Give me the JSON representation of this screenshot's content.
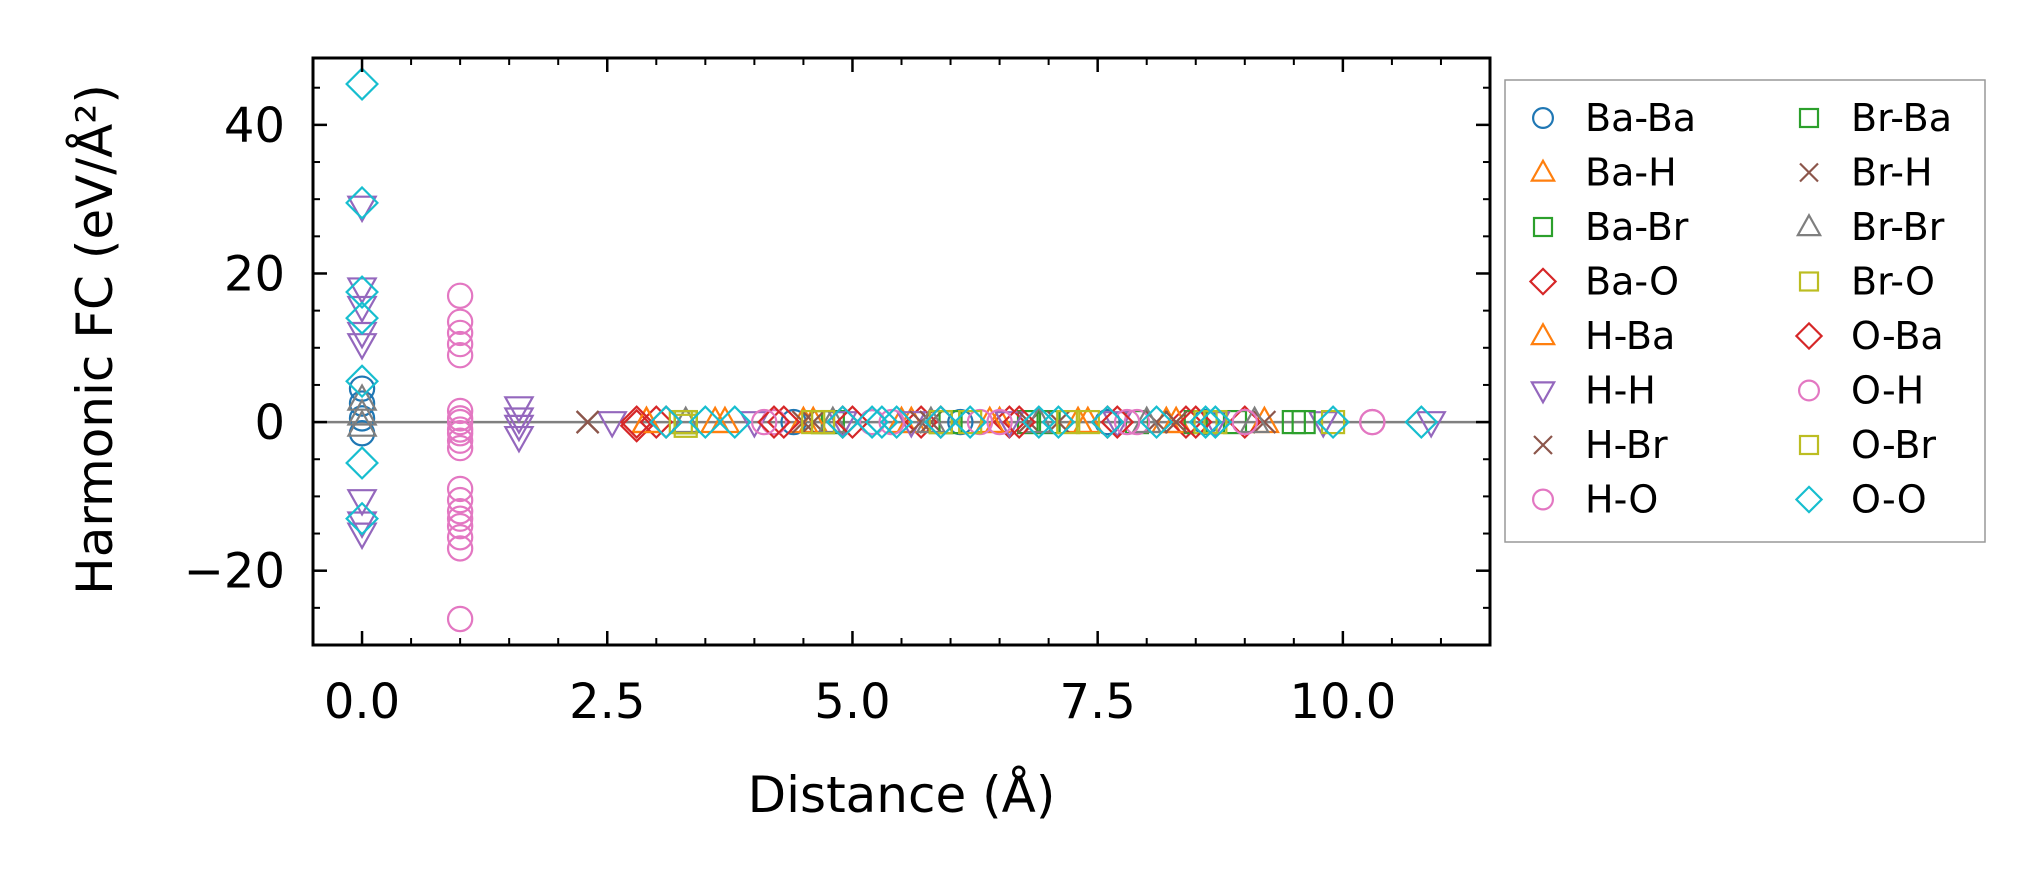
{
  "chart_data": {
    "type": "scatter",
    "title": "",
    "xlabel": "Distance (Å)",
    "ylabel": "Harmonic FC (eV/Å²)",
    "xlim": [
      -0.5,
      11.5
    ],
    "ylim": [
      -30,
      49
    ],
    "x_ticks": [
      0.0,
      2.5,
      5.0,
      7.5,
      10.0
    ],
    "x_tick_labels": [
      "0.0",
      "2.5",
      "5.0",
      "7.5",
      "10.0"
    ],
    "y_ticks": [
      -20,
      0,
      20,
      40
    ],
    "y_tick_labels": [
      "−20",
      "0",
      "20",
      "40"
    ],
    "grid": false,
    "zero_line": true,
    "legend_placement": "outside-right",
    "legend_columns": 2,
    "series": [
      {
        "name": "Ba-Ba",
        "marker": "circle",
        "color": "#1f77b4",
        "filled": false,
        "points": [
          [
            0.0,
            -1.5
          ],
          [
            0.0,
            0.5
          ],
          [
            0.0,
            2.5
          ],
          [
            0.0,
            4.5
          ],
          [
            4.4,
            0.0
          ],
          [
            5.2,
            0.0
          ],
          [
            6.1,
            0.0
          ],
          [
            7.6,
            0.0
          ],
          [
            8.6,
            0.0
          ]
        ]
      },
      {
        "name": "Ba-H",
        "marker": "triangle-up",
        "color": "#ff7f0e",
        "filled": false,
        "points": [
          [
            2.9,
            0.0
          ],
          [
            3.6,
            0.0
          ],
          [
            4.5,
            0.0
          ],
          [
            5.5,
            0.0
          ],
          [
            6.5,
            0.0
          ],
          [
            7.3,
            0.0
          ],
          [
            8.2,
            0.0
          ],
          [
            9.2,
            0.0
          ]
        ]
      },
      {
        "name": "Ba-Br",
        "marker": "square",
        "color": "#2ca02c",
        "filled": false,
        "points": [
          [
            3.3,
            0.0
          ],
          [
            4.8,
            0.0
          ],
          [
            5.9,
            0.0
          ],
          [
            6.8,
            0.0
          ],
          [
            7.9,
            0.0
          ],
          [
            8.9,
            0.0
          ],
          [
            9.5,
            0.0
          ]
        ]
      },
      {
        "name": "Ba-O",
        "marker": "diamond",
        "color": "#d62728",
        "filled": false,
        "points": [
          [
            2.8,
            -0.5
          ],
          [
            3.0,
            0.0
          ],
          [
            4.3,
            0.0
          ],
          [
            4.9,
            0.0
          ],
          [
            5.7,
            0.0
          ],
          [
            6.6,
            0.0
          ],
          [
            7.6,
            0.0
          ],
          [
            8.4,
            0.0
          ],
          [
            9.0,
            0.0
          ]
        ]
      },
      {
        "name": "H-Ba",
        "marker": "triangle-up",
        "color": "#ff7f0e",
        "filled": false,
        "points": [
          [
            2.9,
            0.0
          ],
          [
            3.7,
            0.0
          ],
          [
            4.6,
            0.0
          ],
          [
            5.6,
            0.0
          ],
          [
            6.4,
            0.0
          ],
          [
            7.4,
            0.0
          ],
          [
            8.3,
            0.0
          ]
        ]
      },
      {
        "name": "H-H",
        "marker": "triangle-down",
        "color": "#9467bd",
        "filled": false,
        "points": [
          [
            0.0,
            29.0
          ],
          [
            0.0,
            18.0
          ],
          [
            0.0,
            15.5
          ],
          [
            0.0,
            12.0
          ],
          [
            0.0,
            10.5
          ],
          [
            0.0,
            -10.5
          ],
          [
            0.0,
            -13.5
          ],
          [
            0.0,
            -15.0
          ],
          [
            1.6,
            2.0
          ],
          [
            1.6,
            0.5
          ],
          [
            1.6,
            -0.5
          ],
          [
            1.6,
            -2.0
          ],
          [
            2.55,
            0.0
          ],
          [
            4.0,
            0.0
          ],
          [
            4.9,
            0.0
          ],
          [
            5.6,
            0.0
          ],
          [
            6.6,
            0.0
          ],
          [
            7.7,
            0.0
          ],
          [
            8.7,
            0.0
          ],
          [
            9.8,
            0.0
          ],
          [
            10.9,
            0.0
          ]
        ]
      },
      {
        "name": "H-Br",
        "marker": "x",
        "color": "#8c564b",
        "filled": false,
        "points": [
          [
            2.3,
            0.0
          ],
          [
            4.6,
            0.0
          ],
          [
            5.8,
            0.0
          ],
          [
            6.8,
            0.0
          ],
          [
            8.1,
            0.0
          ],
          [
            9.2,
            0.0
          ]
        ]
      },
      {
        "name": "H-O",
        "marker": "circle",
        "color": "#e377c2",
        "filled": false,
        "points": [
          [
            1.0,
            17.0
          ],
          [
            1.0,
            13.5
          ],
          [
            1.0,
            12.0
          ],
          [
            1.0,
            10.5
          ],
          [
            1.0,
            9.0
          ],
          [
            1.0,
            1.5
          ],
          [
            1.0,
            0.0
          ],
          [
            1.0,
            -1.0
          ],
          [
            1.0,
            -2.5
          ],
          [
            1.0,
            -3.5
          ],
          [
            1.0,
            -9.0
          ],
          [
            1.0,
            -10.5
          ],
          [
            1.0,
            -12.0
          ],
          [
            1.0,
            -13.0
          ],
          [
            1.0,
            -14.0
          ],
          [
            1.0,
            -15.5
          ],
          [
            1.0,
            -17.0
          ],
          [
            1.0,
            -26.5
          ],
          [
            4.2,
            0.0
          ],
          [
            5.2,
            0.0
          ],
          [
            6.3,
            0.0
          ],
          [
            7.9,
            0.0
          ],
          [
            10.3,
            0.0
          ]
        ]
      },
      {
        "name": "Br-Ba",
        "marker": "square",
        "color": "#2ca02c",
        "filled": false,
        "points": [
          [
            3.3,
            0.0
          ],
          [
            4.7,
            0.0
          ],
          [
            6.0,
            0.0
          ],
          [
            7.0,
            0.0
          ],
          [
            8.5,
            0.0
          ],
          [
            9.6,
            0.0
          ]
        ]
      },
      {
        "name": "Br-H",
        "marker": "x",
        "color": "#8c564b",
        "filled": false,
        "points": [
          [
            2.3,
            0.0
          ],
          [
            4.5,
            0.0
          ],
          [
            5.7,
            0.0
          ],
          [
            7.1,
            0.0
          ],
          [
            8.3,
            0.0
          ]
        ]
      },
      {
        "name": "Br-Br",
        "marker": "triangle-up",
        "color": "#7f7f7f",
        "filled": false,
        "points": [
          [
            0.0,
            3.0
          ],
          [
            0.0,
            1.0
          ],
          [
            0.0,
            -0.5
          ],
          [
            3.3,
            0.0
          ],
          [
            4.8,
            0.0
          ],
          [
            5.8,
            0.0
          ],
          [
            6.9,
            0.0
          ],
          [
            8.0,
            0.0
          ],
          [
            9.1,
            0.0
          ]
        ]
      },
      {
        "name": "Br-O",
        "marker": "square",
        "color": "#bcbd22",
        "filled": false,
        "points": [
          [
            3.25,
            0.0
          ],
          [
            3.3,
            -0.5
          ],
          [
            4.6,
            0.0
          ],
          [
            5.9,
            0.0
          ],
          [
            7.2,
            0.0
          ],
          [
            8.6,
            0.0
          ],
          [
            9.9,
            0.0
          ]
        ]
      },
      {
        "name": "O-Ba",
        "marker": "diamond",
        "color": "#d62728",
        "filled": false,
        "points": [
          [
            2.8,
            0.0
          ],
          [
            3.1,
            0.0
          ],
          [
            4.2,
            0.0
          ],
          [
            5.0,
            0.0
          ],
          [
            5.9,
            0.0
          ],
          [
            6.7,
            0.0
          ],
          [
            7.7,
            0.0
          ],
          [
            8.5,
            0.0
          ]
        ]
      },
      {
        "name": "O-H",
        "marker": "circle",
        "color": "#e377c2",
        "filled": false,
        "points": [
          [
            1.0,
            0.5
          ],
          [
            1.0,
            -1.5
          ],
          [
            4.1,
            0.0
          ],
          [
            5.4,
            0.0
          ],
          [
            6.5,
            0.0
          ],
          [
            7.8,
            0.0
          ],
          [
            9.0,
            0.0
          ],
          [
            10.3,
            0.0
          ]
        ]
      },
      {
        "name": "O-Br",
        "marker": "square",
        "color": "#bcbd22",
        "filled": false,
        "points": [
          [
            3.3,
            0.0
          ],
          [
            4.7,
            0.0
          ],
          [
            6.2,
            0.0
          ],
          [
            7.4,
            0.0
          ],
          [
            8.7,
            0.0
          ]
        ]
      },
      {
        "name": "O-O",
        "marker": "diamond",
        "color": "#17becf",
        "filled": false,
        "points": [
          [
            0.0,
            45.5
          ],
          [
            0.0,
            29.5
          ],
          [
            0.0,
            17.5
          ],
          [
            0.0,
            14.0
          ],
          [
            0.0,
            5.5
          ],
          [
            0.0,
            -5.5
          ],
          [
            0.0,
            -13.0
          ],
          [
            3.1,
            0.0
          ],
          [
            3.5,
            0.0
          ],
          [
            3.8,
            0.0
          ],
          [
            4.9,
            0.0
          ],
          [
            5.2,
            0.0
          ],
          [
            5.3,
            0.0
          ],
          [
            5.45,
            0.0
          ],
          [
            5.9,
            0.0
          ],
          [
            6.2,
            0.0
          ],
          [
            6.9,
            0.0
          ],
          [
            7.1,
            0.0
          ],
          [
            7.6,
            0.0
          ],
          [
            8.1,
            0.0
          ],
          [
            8.6,
            0.0
          ],
          [
            8.7,
            0.0
          ],
          [
            9.9,
            0.0
          ],
          [
            10.8,
            0.0
          ]
        ]
      }
    ]
  }
}
